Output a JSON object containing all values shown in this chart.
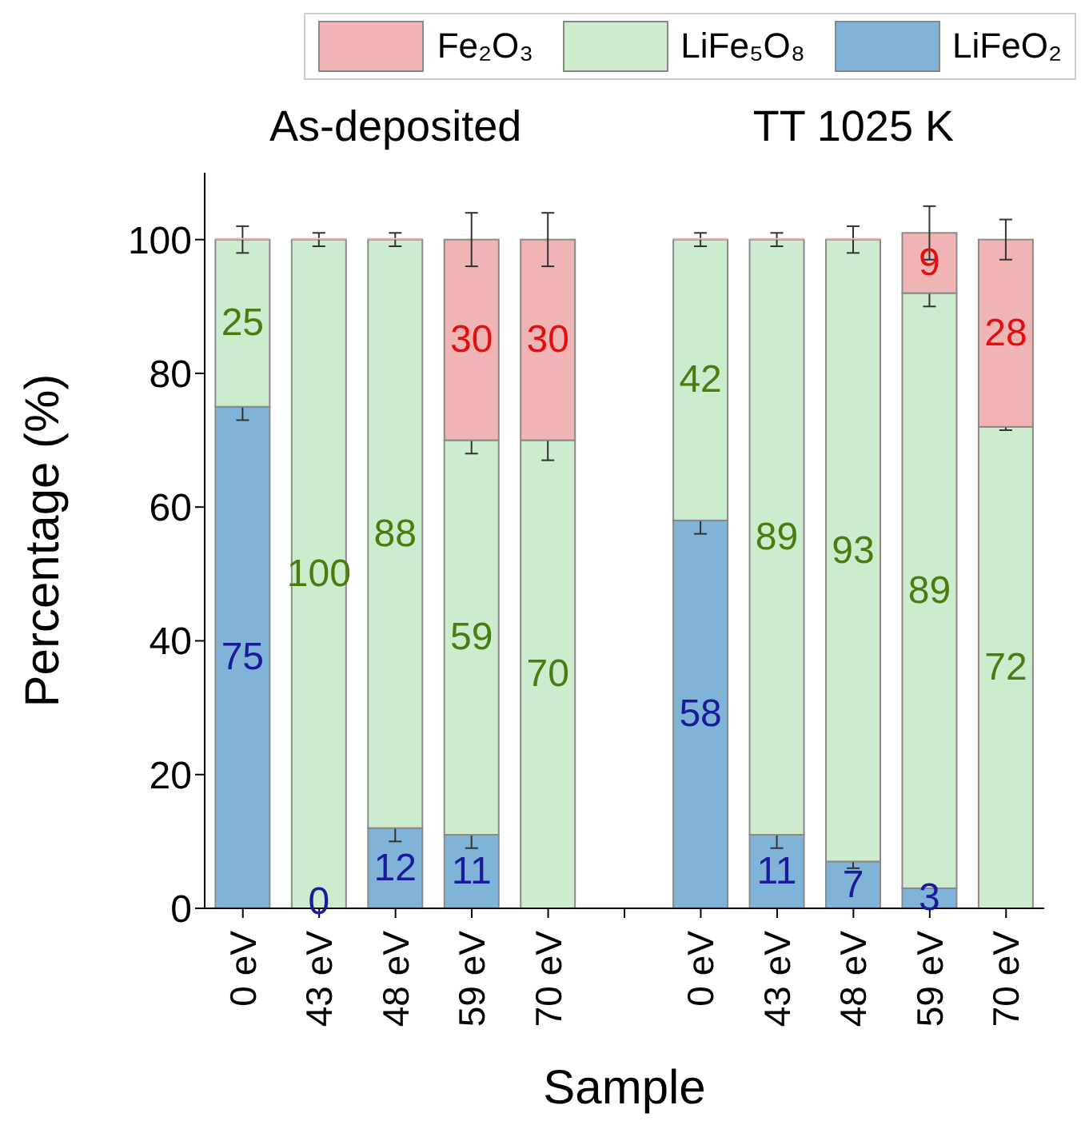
{
  "chart_data": {
    "type": "bar",
    "stacked": true,
    "xlabel": "Sample",
    "ylabel": "Percentage (%)",
    "categories": [
      "0 eV",
      "43 eV",
      "48 eV",
      "59 eV",
      "70 eV",
      null,
      "0 eV",
      "43 eV",
      "48 eV",
      "59 eV",
      "70 eV"
    ],
    "series": [
      {
        "name": "LiFeO₂",
        "color": "#7fb3d8",
        "values": [
          75,
          0,
          12,
          11,
          0,
          null,
          58,
          11,
          7,
          3,
          0
        ],
        "errors": [
          2,
          null,
          2,
          2,
          null,
          null,
          2,
          2,
          1,
          null,
          null
        ],
        "value_labels": [
          "75",
          "0",
          "12",
          "11",
          null,
          null,
          "58",
          "11",
          "7",
          "3",
          null
        ]
      },
      {
        "name": "LiFe₅O₈",
        "color": "#cdebcd",
        "values": [
          25,
          100,
          88,
          59,
          70,
          null,
          42,
          89,
          93,
          89,
          72
        ],
        "errors": [
          2,
          1,
          1,
          2,
          3,
          null,
          1,
          1,
          2,
          2,
          0.5
        ],
        "value_labels": [
          "25",
          "100",
          "88",
          "59",
          "70",
          null,
          "42",
          "89",
          "93",
          "89",
          "72"
        ]
      },
      {
        "name": "Fe₂O₃",
        "color": "#f1b4b4",
        "values": [
          0,
          0,
          0,
          30,
          30,
          null,
          0,
          0,
          0,
          9,
          28
        ],
        "errors": [
          null,
          null,
          null,
          4,
          4,
          null,
          null,
          null,
          null,
          4,
          3
        ],
        "value_labels": [
          null,
          null,
          null,
          "30",
          "30",
          null,
          null,
          null,
          null,
          "9",
          "28"
        ]
      }
    ],
    "ylim": [
      0,
      110
    ],
    "yticks": [
      0,
      20,
      40,
      60,
      80,
      100
    ],
    "legend": "top right",
    "annotations": [
      "As-deposited",
      "TT 1025 K"
    ]
  }
}
